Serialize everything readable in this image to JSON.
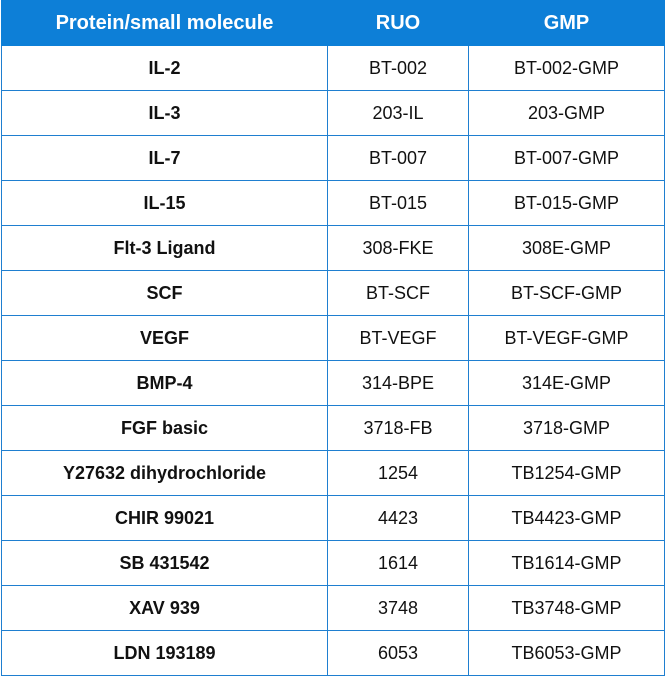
{
  "headers": [
    "Protein/small molecule",
    "RUO",
    "GMP"
  ],
  "rows": [
    {
      "name": "IL-2",
      "ruo": "BT-002",
      "gmp": "BT-002-GMP"
    },
    {
      "name": "IL-3",
      "ruo": "203-IL",
      "gmp": "203-GMP"
    },
    {
      "name": "IL-7",
      "ruo": "BT-007",
      "gmp": "BT-007-GMP"
    },
    {
      "name": "IL-15",
      "ruo": "BT-015",
      "gmp": "BT-015-GMP"
    },
    {
      "name": "Flt-3 Ligand",
      "ruo": "308-FKE",
      "gmp": "308E-GMP"
    },
    {
      "name": "SCF",
      "ruo": "BT-SCF",
      "gmp": "BT-SCF-GMP"
    },
    {
      "name": "VEGF",
      "ruo": "BT-VEGF",
      "gmp": "BT-VEGF-GMP"
    },
    {
      "name": "BMP-4",
      "ruo": "314-BPE",
      "gmp": "314E-GMP"
    },
    {
      "name": "FGF basic",
      "ruo": "3718-FB",
      "gmp": "3718-GMP"
    },
    {
      "name": "Y27632 dihydrochloride",
      "ruo": "1254",
      "gmp": "TB1254-GMP"
    },
    {
      "name": "CHIR 99021",
      "ruo": "4423",
      "gmp": "TB4423-GMP"
    },
    {
      "name": "SB 431542",
      "ruo": "1614",
      "gmp": "TB1614-GMP"
    },
    {
      "name": "XAV 939",
      "ruo": "3748",
      "gmp": "TB3748-GMP"
    },
    {
      "name": "LDN 193189",
      "ruo": "6053",
      "gmp": "TB6053-GMP"
    }
  ],
  "colors": {
    "header_bg": "#0d7fd7",
    "header_text": "#ffffff",
    "border": "#1f7fd0"
  }
}
